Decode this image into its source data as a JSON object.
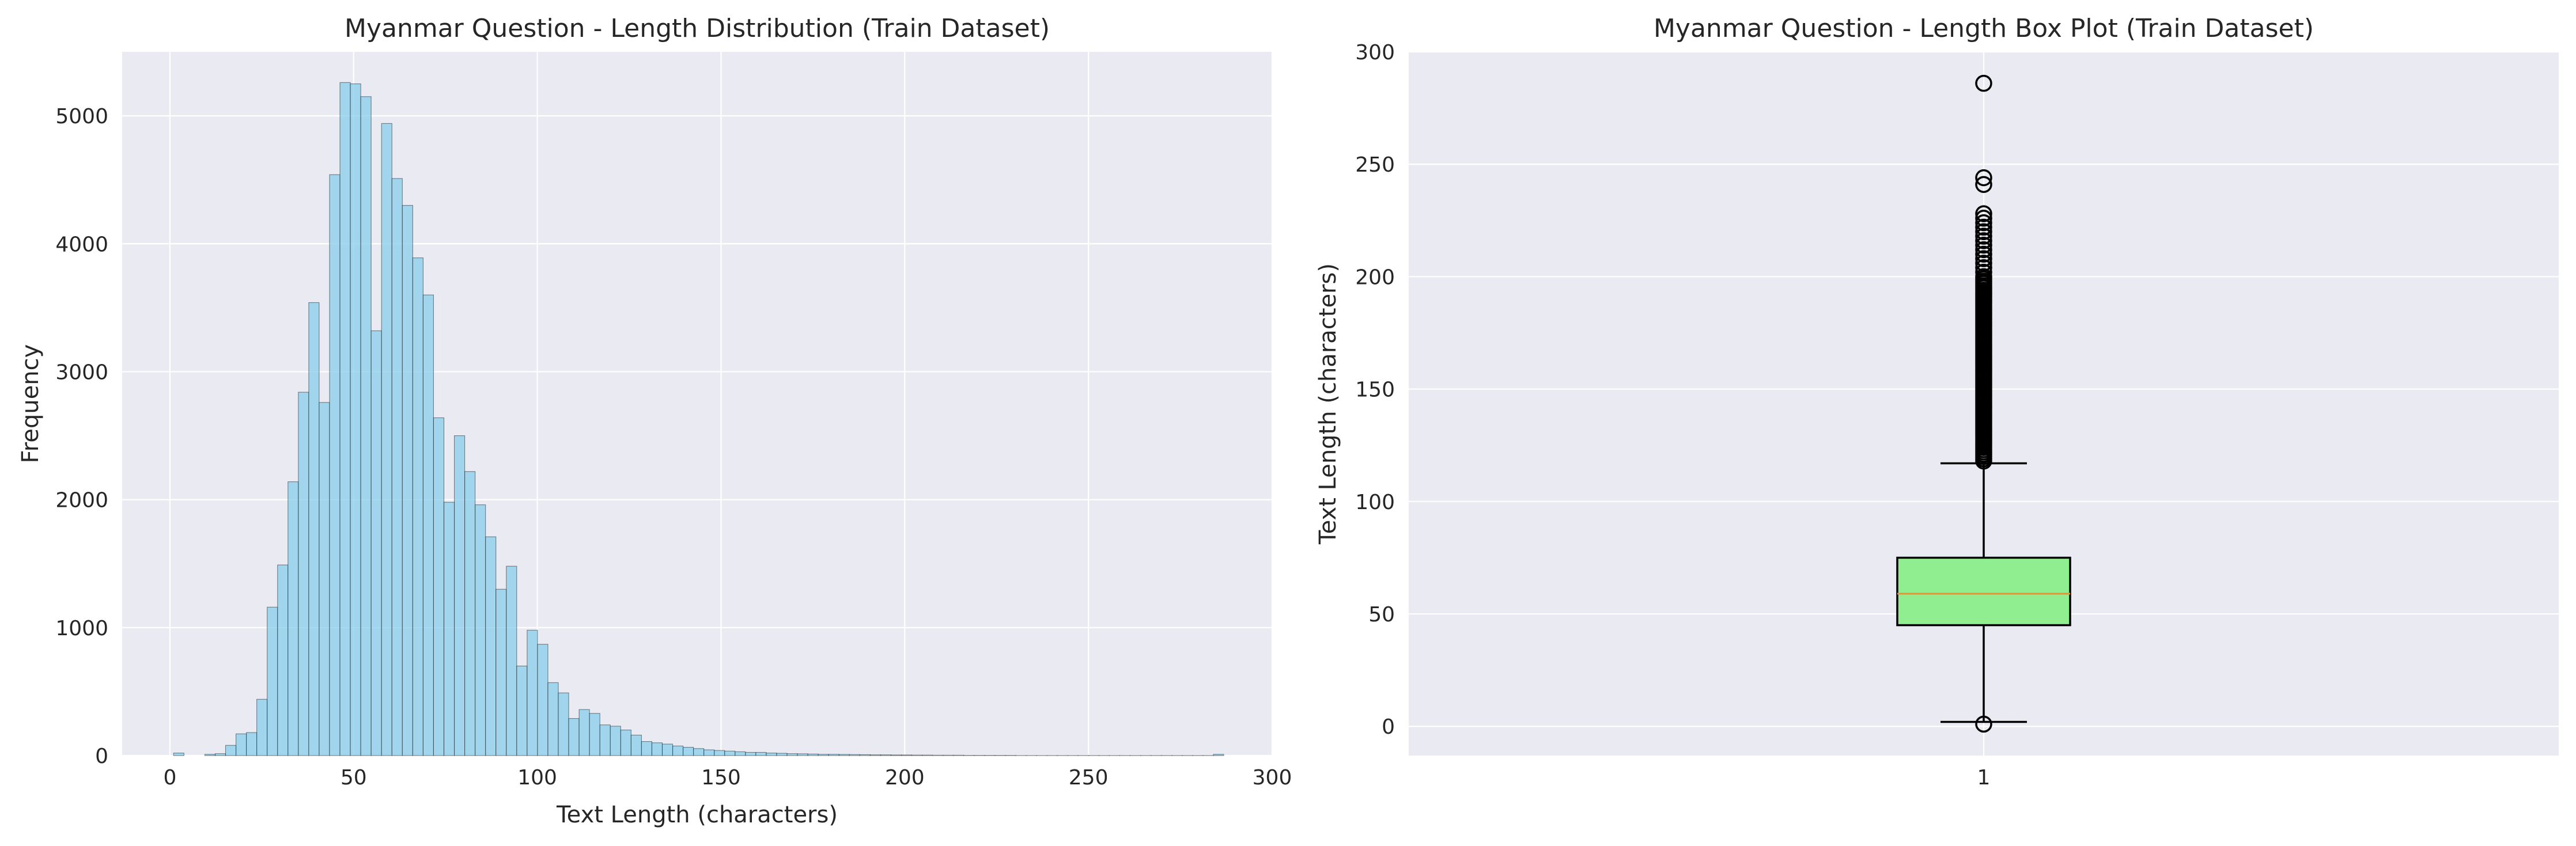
{
  "chart_data": [
    {
      "type": "bar",
      "title": "Myanmar Question - Length Distribution (Train Dataset)",
      "xlabel": "Text Length (characters)",
      "ylabel": "Frequency",
      "xlim": [
        -13,
        300
      ],
      "ylim": [
        0,
        5500
      ],
      "xticks": [
        "0",
        "50",
        "100",
        "150",
        "200",
        "250",
        "300"
      ],
      "yticks": [
        "0",
        "1000",
        "2000",
        "3000",
        "4000",
        "5000"
      ],
      "grid": true,
      "bar_color": "#87ceeb",
      "bin_width": 2.83,
      "bin_start": 1,
      "values": [
        20,
        0,
        0,
        10,
        15,
        80,
        170,
        180,
        440,
        1160,
        1490,
        2140,
        2840,
        3540,
        2760,
        4540,
        5260,
        5250,
        5150,
        3320,
        4940,
        4510,
        4300,
        3890,
        3600,
        2640,
        1980,
        2500,
        2220,
        1960,
        1710,
        1300,
        1480,
        700,
        980,
        870,
        570,
        490,
        290,
        360,
        330,
        240,
        230,
        200,
        160,
        110,
        100,
        90,
        75,
        65,
        55,
        45,
        40,
        35,
        30,
        25,
        25,
        20,
        18,
        15,
        14,
        12,
        10,
        10,
        9,
        8,
        7,
        6,
        6,
        5,
        5,
        4,
        4,
        3,
        3,
        3,
        2,
        2,
        2,
        2,
        2,
        1,
        1,
        1,
        1,
        1,
        1,
        1,
        1,
        1,
        1,
        1,
        1,
        1,
        1,
        1,
        1,
        1,
        1,
        1,
        10
      ]
    },
    {
      "type": "box",
      "title": "Myanmar Question - Length Box Plot (Train Dataset)",
      "xlabel": "",
      "ylabel": "Text Length (characters)",
      "ylim": [
        -13,
        300
      ],
      "xticks": [
        "1"
      ],
      "yticks": [
        "0",
        "50",
        "100",
        "150",
        "200",
        "250",
        "300"
      ],
      "grid": true,
      "box_color": "#90ee90",
      "median_color": "#f28e2b",
      "stats": {
        "whislo": 2,
        "q1": 45,
        "median": 59,
        "q3": 75,
        "whishi": 117
      },
      "fliers": [
        1,
        118,
        119,
        120,
        121,
        122,
        123,
        124,
        125,
        126,
        127,
        128,
        129,
        130,
        131,
        132,
        133,
        134,
        135,
        136,
        137,
        138,
        139,
        140,
        141,
        142,
        143,
        144,
        145,
        146,
        147,
        148,
        149,
        150,
        151,
        152,
        153,
        154,
        155,
        156,
        157,
        158,
        159,
        160,
        161,
        162,
        163,
        164,
        165,
        166,
        167,
        168,
        169,
        170,
        171,
        172,
        173,
        174,
        175,
        176,
        177,
        178,
        179,
        180,
        181,
        182,
        183,
        184,
        185,
        186,
        187,
        188,
        189,
        190,
        191,
        192,
        193,
        194,
        195,
        196,
        197,
        198,
        199,
        200,
        202,
        204,
        206,
        208,
        210,
        212,
        214,
        216,
        218,
        220,
        222,
        224,
        226,
        228,
        241,
        244,
        286
      ]
    }
  ]
}
